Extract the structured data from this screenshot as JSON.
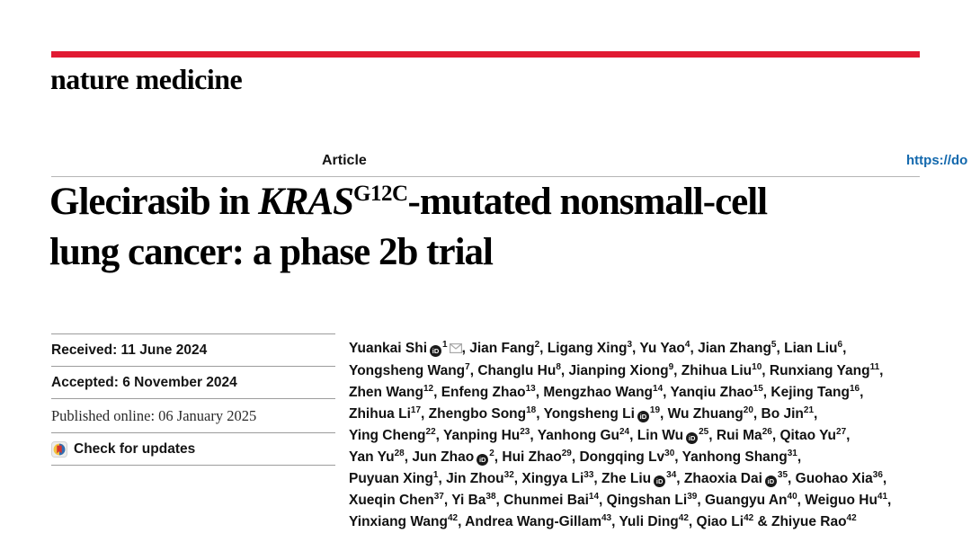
{
  "masthead": {
    "journal": "nature medicine"
  },
  "article_header": {
    "type_label": "Article",
    "doi_link": "https://do"
  },
  "title": {
    "part1": "Glecirasib in ",
    "gene": "KRAS",
    "superscript": "G12C",
    "part2": "-mutated nonsmall-cell",
    "line2": "lung cancer: a phase 2b trial"
  },
  "metadata": {
    "received": "Received: 11 June 2024",
    "accepted": "Accepted: 6 November 2024",
    "published_online": "Published online: 06 January 2025",
    "check_updates_label": "Check for updates"
  },
  "colors": {
    "brand_red": "#e11a32",
    "link_blue": "#1268ad",
    "rule_light": "#b5b5b5",
    "rule_mid": "#9c9c9c"
  },
  "icons": {
    "orcid_label": "iD",
    "crossmark": "crossmark-check-icon",
    "envelope": "envelope-icon"
  },
  "authors": {
    "lines": [
      {
        "tail": ",",
        "segments": [
          {
            "sep": "",
            "name": "Yuankai Shi",
            "orcid": true,
            "sup": "1",
            "env": true
          },
          {
            "sep": ", ",
            "name": "Jian Fang",
            "sup": "2"
          },
          {
            "sep": ", ",
            "name": "Ligang Xing",
            "sup": "3"
          },
          {
            "sep": ", ",
            "name": "Yu Yao",
            "sup": "4"
          },
          {
            "sep": ", ",
            "name": "Jian Zhang",
            "sup": "5"
          },
          {
            "sep": ", ",
            "name": "Lian Liu",
            "sup": "6"
          }
        ]
      },
      {
        "tail": ",",
        "segments": [
          {
            "sep": "",
            "name": "Yongsheng Wang",
            "sup": "7"
          },
          {
            "sep": ", ",
            "name": "Changlu Hu",
            "sup": "8"
          },
          {
            "sep": ", ",
            "name": "Jianping Xiong",
            "sup": "9"
          },
          {
            "sep": ", ",
            "name": "Zhihua Liu",
            "sup": "10"
          },
          {
            "sep": ", ",
            "name": "Runxiang Yang",
            "sup": "11"
          }
        ]
      },
      {
        "tail": ",",
        "segments": [
          {
            "sep": "",
            "name": "Zhen Wang",
            "sup": "12"
          },
          {
            "sep": ", ",
            "name": "Enfeng Zhao",
            "sup": "13"
          },
          {
            "sep": ", ",
            "name": "Mengzhao Wang",
            "sup": "14"
          },
          {
            "sep": ", ",
            "name": "Yanqiu Zhao",
            "sup": "15"
          },
          {
            "sep": ", ",
            "name": "Kejing Tang",
            "sup": "16"
          }
        ]
      },
      {
        "tail": ",",
        "segments": [
          {
            "sep": "",
            "name": "Zhihua Li",
            "sup": "17"
          },
          {
            "sep": ", ",
            "name": "Zhengbo Song",
            "sup": "18"
          },
          {
            "sep": ", ",
            "name": "Yongsheng Li",
            "orcid": true,
            "sup": "19"
          },
          {
            "sep": ", ",
            "name": "Wu Zhuang",
            "sup": "20"
          },
          {
            "sep": ", ",
            "name": "Bo Jin",
            "sup": "21"
          }
        ]
      },
      {
        "tail": ",",
        "segments": [
          {
            "sep": "",
            "name": "Ying Cheng",
            "sup": "22"
          },
          {
            "sep": ", ",
            "name": "Yanping Hu",
            "sup": "23"
          },
          {
            "sep": ", ",
            "name": "Yanhong Gu",
            "sup": "24"
          },
          {
            "sep": ", ",
            "name": "Lin Wu",
            "orcid": true,
            "sup": "25"
          },
          {
            "sep": ", ",
            "name": "Rui Ma",
            "sup": "26"
          },
          {
            "sep": ", ",
            "name": "Qitao Yu",
            "sup": "27"
          }
        ]
      },
      {
        "tail": ",",
        "segments": [
          {
            "sep": "",
            "name": "Yan Yu",
            "sup": "28"
          },
          {
            "sep": ", ",
            "name": "Jun Zhao",
            "orcid": true,
            "sup": "2"
          },
          {
            "sep": ", ",
            "name": "Hui Zhao",
            "sup": "29"
          },
          {
            "sep": ", ",
            "name": "Dongqing Lv",
            "sup": "30"
          },
          {
            "sep": ", ",
            "name": "Yanhong Shang",
            "sup": "31"
          }
        ]
      },
      {
        "tail": ",",
        "segments": [
          {
            "sep": "",
            "name": "Puyuan Xing",
            "sup": "1"
          },
          {
            "sep": ", ",
            "name": "Jin Zhou",
            "sup": "32"
          },
          {
            "sep": ", ",
            "name": "Xingya Li",
            "sup": "33"
          },
          {
            "sep": ", ",
            "name": "Zhe Liu",
            "orcid": true,
            "sup": "34"
          },
          {
            "sep": ", ",
            "name": "Zhaoxia Dai",
            "orcid": true,
            "sup": "35"
          },
          {
            "sep": ", ",
            "name": "Guohao Xia",
            "sup": "36"
          }
        ]
      },
      {
        "tail": ",",
        "segments": [
          {
            "sep": "",
            "name": "Xueqin Chen",
            "sup": "37"
          },
          {
            "sep": ", ",
            "name": "Yi Ba",
            "sup": "38"
          },
          {
            "sep": ", ",
            "name": "Chunmei Bai",
            "sup": "14"
          },
          {
            "sep": ", ",
            "name": "Qingshan Li",
            "sup": "39"
          },
          {
            "sep": ", ",
            "name": "Guangyu An",
            "sup": "40"
          },
          {
            "sep": ", ",
            "name": "Weiguo Hu",
            "sup": "41"
          }
        ]
      },
      {
        "tail": "",
        "segments": [
          {
            "sep": "",
            "name": "Yinxiang Wang",
            "sup": "42"
          },
          {
            "sep": ", ",
            "name": "Andrea Wang-Gillam",
            "sup": "43"
          },
          {
            "sep": ", ",
            "name": "Yuli Ding",
            "sup": "42"
          },
          {
            "sep": ", ",
            "name": "Qiao Li",
            "sup": "42"
          },
          {
            "sep": " & ",
            "name": "Zhiyue Rao",
            "sup": "42"
          }
        ]
      }
    ]
  }
}
